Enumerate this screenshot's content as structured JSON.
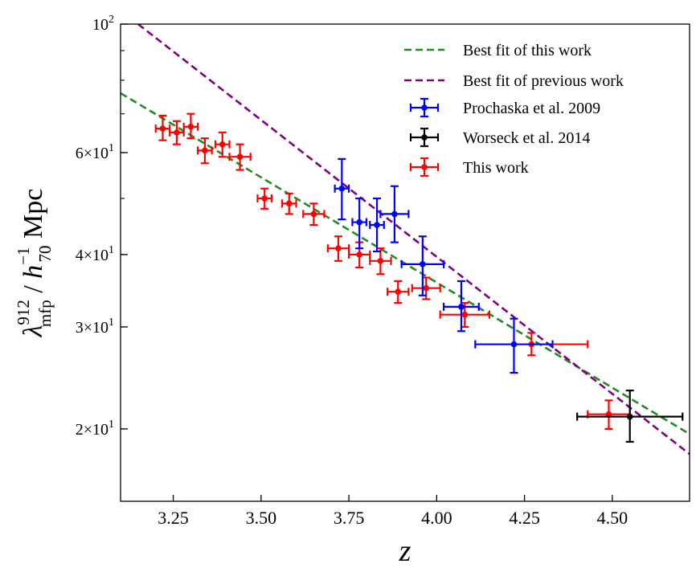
{
  "chart_data": {
    "type": "scatter",
    "title": "",
    "xlabel": "z",
    "ylabel": "λ^{912}_{mfp} / h^{-1}_{70} Mpc",
    "xlim": [
      3.1,
      4.72
    ],
    "ylim": [
      15,
      100
    ],
    "yscale": "log",
    "grid": false,
    "legend_position": "top-right",
    "x_ticks": [
      3.25,
      3.5,
      3.75,
      4.0,
      4.25,
      4.5
    ],
    "x_tick_labels": [
      "3.25",
      "3.50",
      "3.75",
      "4.00",
      "4.25",
      "4.50"
    ],
    "y_ticks": [
      {
        "value": 20,
        "base": "2",
        "exp": "1"
      },
      {
        "value": 30,
        "base": "3",
        "exp": "1"
      },
      {
        "value": 40,
        "base": "4",
        "exp": "1"
      },
      {
        "value": 60,
        "base": "6",
        "exp": "1"
      },
      {
        "value": 100,
        "base": "10",
        "exp": "2"
      }
    ],
    "y_tick_label_times": "×",
    "series": [
      {
        "name": "Best fit of this work",
        "kind": "line",
        "style": "dashed",
        "color": "#228B22",
        "x": [
          3.1,
          4.72
        ],
        "y": [
          76.0,
          19.6
        ]
      },
      {
        "name": "Best fit of previous work",
        "kind": "line",
        "style": "dashed",
        "color": "#800080",
        "x": [
          3.15,
          4.72
        ],
        "y": [
          100.0,
          18.1
        ]
      },
      {
        "name": "Prochaska et al. 2009",
        "kind": "errorbar",
        "color": "#0000FF",
        "points": [
          {
            "x": 3.73,
            "y": 52.0,
            "xerr": 0.02,
            "ylo": 46.0,
            "yhi": 58.5
          },
          {
            "x": 3.78,
            "y": 45.5,
            "xerr": 0.02,
            "ylo": 41.0,
            "yhi": 50.0
          },
          {
            "x": 3.83,
            "y": 45.0,
            "xerr": 0.02,
            "ylo": 40.5,
            "yhi": 50.0
          },
          {
            "x": 3.88,
            "y": 47.0,
            "xerr": 0.04,
            "ylo": 42.0,
            "yhi": 52.5
          },
          {
            "x": 3.96,
            "y": 38.5,
            "xerr": 0.06,
            "ylo": 34.0,
            "yhi": 43.0
          },
          {
            "x": 4.07,
            "y": 32.5,
            "xerr": 0.05,
            "ylo": 29.5,
            "yhi": 36.0
          },
          {
            "x": 4.22,
            "y": 28.0,
            "xerr": 0.11,
            "ylo": 25.0,
            "yhi": 31.0
          }
        ]
      },
      {
        "name": "Worseck et al. 2014",
        "kind": "errorbar",
        "color": "#000000",
        "points": [
          {
            "x": 4.55,
            "y": 21.0,
            "xerr": 0.15,
            "ylo": 19.0,
            "yhi": 23.3
          }
        ]
      },
      {
        "name": "This work",
        "kind": "errorbar",
        "color": "#FF0000",
        "points": [
          {
            "x": 3.22,
            "y": 66.0,
            "xerr": 0.02,
            "ylo": 63.0,
            "yhi": 69.5
          },
          {
            "x": 3.26,
            "y": 65.0,
            "xerr": 0.02,
            "ylo": 62.0,
            "yhi": 68.0
          },
          {
            "x": 3.3,
            "y": 66.5,
            "xerr": 0.02,
            "ylo": 63.5,
            "yhi": 70.0
          },
          {
            "x": 3.34,
            "y": 60.5,
            "xerr": 0.02,
            "ylo": 57.5,
            "yhi": 63.5
          },
          {
            "x": 3.39,
            "y": 62.0,
            "xerr": 0.02,
            "ylo": 59.0,
            "yhi": 65.0
          },
          {
            "x": 3.44,
            "y": 59.0,
            "xerr": 0.03,
            "ylo": 56.0,
            "yhi": 62.0
          },
          {
            "x": 3.51,
            "y": 50.0,
            "xerr": 0.02,
            "ylo": 48.0,
            "yhi": 52.0
          },
          {
            "x": 3.58,
            "y": 49.0,
            "xerr": 0.02,
            "ylo": 47.0,
            "yhi": 51.0
          },
          {
            "x": 3.65,
            "y": 47.0,
            "xerr": 0.03,
            "ylo": 45.0,
            "yhi": 49.0
          },
          {
            "x": 3.72,
            "y": 41.0,
            "xerr": 0.03,
            "ylo": 39.0,
            "yhi": 43.0
          },
          {
            "x": 3.78,
            "y": 40.0,
            "xerr": 0.03,
            "ylo": 38.0,
            "yhi": 42.0
          },
          {
            "x": 3.84,
            "y": 39.0,
            "xerr": 0.03,
            "ylo": 37.0,
            "yhi": 41.0
          },
          {
            "x": 3.89,
            "y": 34.5,
            "xerr": 0.03,
            "ylo": 33.0,
            "yhi": 36.0
          },
          {
            "x": 3.97,
            "y": 35.0,
            "xerr": 0.04,
            "ylo": 33.5,
            "yhi": 36.5
          },
          {
            "x": 4.08,
            "y": 31.5,
            "xerr": 0.07,
            "ylo": 30.0,
            "yhi": 33.0
          },
          {
            "x": 4.27,
            "y": 28.0,
            "xerr": 0.16,
            "ylo": 26.8,
            "yhi": 29.3
          },
          {
            "x": 4.49,
            "y": 21.2,
            "xerr": 0.06,
            "ylo": 20.0,
            "yhi": 22.4
          }
        ]
      }
    ]
  }
}
